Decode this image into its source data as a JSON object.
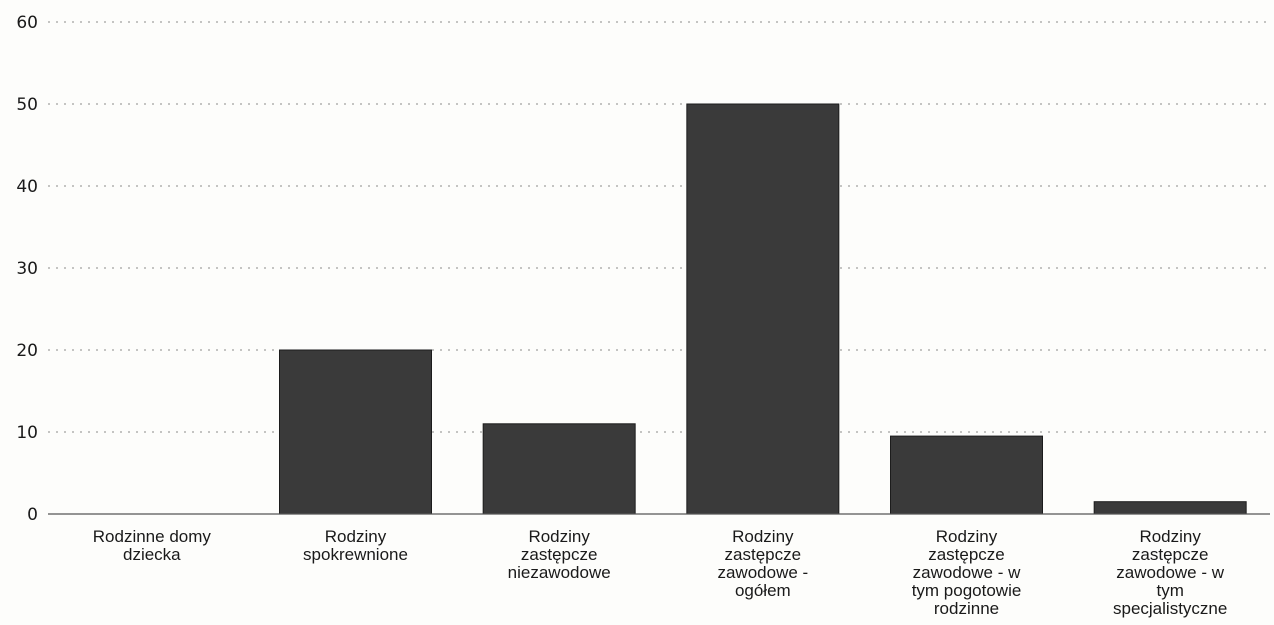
{
  "chart_data": {
    "type": "bar",
    "categories": [
      "Rodzinne domy dziecka",
      "Rodziny spokrewnione",
      "Rodziny zastępcze niezawodowe",
      "Rodziny zastępcze zawodowe - ogółem",
      "Rodziny zastępcze zawodowe - w tym pogotowie rodzinne",
      "Rodziny zastępcze zawodowe - w tym specjalistyczne"
    ],
    "category_label_lines": [
      [
        "Rodzinne domy",
        "dziecka"
      ],
      [
        "Rodziny",
        "spokrewnione"
      ],
      [
        "Rodziny",
        "zastępcze",
        "niezawodowe"
      ],
      [
        "Rodziny",
        "zastępcze",
        "zawodowe -",
        "ogółem"
      ],
      [
        "Rodziny",
        "zastępcze",
        "zawodowe - w",
        "tym pogotowie",
        "rodzinne"
      ],
      [
        "Rodziny",
        "zastępcze",
        "zawodowe - w",
        "tym",
        "specjalistyczne"
      ]
    ],
    "values": [
      0,
      20,
      11,
      50,
      9.5,
      1.5
    ],
    "ylim": [
      0,
      60
    ],
    "yticks": [
      0,
      10,
      20,
      30,
      40,
      50,
      60
    ],
    "title": "",
    "xlabel": "",
    "ylabel": "",
    "grid": true,
    "bar_color": "#3a3a3a"
  }
}
